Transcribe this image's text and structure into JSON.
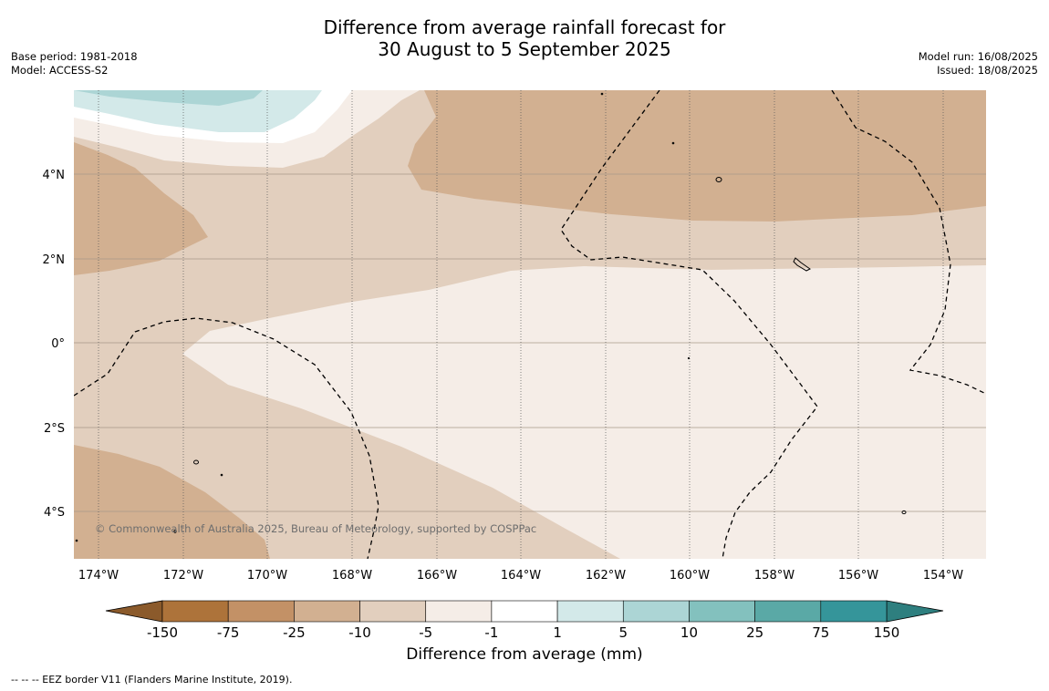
{
  "title_line1": "Difference from average rainfall forecast for",
  "title_line2": "30 August to 5 September 2025",
  "base_period": "Base period: 1981-2018",
  "model": "Model: ACCESS-S2",
  "model_run": "Model run: 16/08/2025",
  "issued": "Issued: 18/08/2025",
  "lat_labels": [
    "4°N",
    "2°N",
    "0°",
    "2°S",
    "4°S"
  ],
  "lon_labels": [
    "174°W",
    "172°W",
    "170°W",
    "168°W",
    "166°W",
    "164°W",
    "162°W",
    "160°W",
    "158°W",
    "156°W",
    "154°W"
  ],
  "copyright": "© Commonwealth of Australia 2025, Bureau of Meteorology, supported by COSPPac",
  "colorbar": {
    "ticks": [
      "-150",
      "-75",
      "-25",
      "-10",
      "-5",
      "-1",
      "1",
      "5",
      "10",
      "25",
      "75",
      "150"
    ],
    "colors": [
      "#ad733a",
      "#c39166",
      "#d2b091",
      "#e2cfbe",
      "#f5ede7",
      "#ffffff",
      "#d3e9e9",
      "#acd5d5",
      "#83c1be",
      "#5aa9a6",
      "#35959a"
    ],
    "extend_low_color": "#8b5a2b",
    "extend_high_color": "#2e7f7f",
    "title": "Difference from average (mm)"
  },
  "eez_note": "--  --  -- EEZ border V11 (Flanders Marine Institute, 2019)."
}
